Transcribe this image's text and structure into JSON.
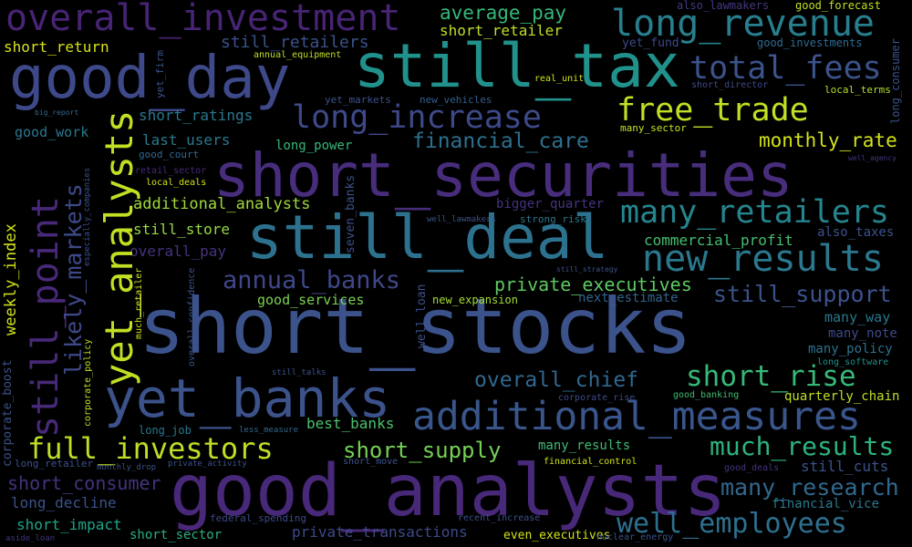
{
  "words": [
    {
      "text": "short_stocks",
      "color": "#3b528b"
    },
    {
      "text": "good_analysts",
      "color": "#482878"
    },
    {
      "text": "short_securities",
      "color": "#472d7b"
    },
    {
      "text": "still_tax",
      "color": "#21918c"
    },
    {
      "text": "still_deal",
      "color": "#2c728e"
    },
    {
      "text": "good_day",
      "color": "#3e4989"
    },
    {
      "text": "yet_banks",
      "color": "#3b528b"
    },
    {
      "text": "additional_measures",
      "color": "#39568c"
    },
    {
      "text": "overall_investment",
      "color": "#482475"
    },
    {
      "text": "long_revenue",
      "color": "#277f8e"
    },
    {
      "text": "new_results",
      "color": "#2a788e"
    },
    {
      "text": "many_retailers",
      "color": "#25858e"
    },
    {
      "text": "free_trade",
      "color": "#c2df23"
    },
    {
      "text": "total_fees",
      "color": "#3b528b"
    },
    {
      "text": "long_increase",
      "color": "#3e4989"
    },
    {
      "text": "full_investors",
      "color": "#bddf26"
    },
    {
      "text": "well_employees",
      "color": "#2d708e"
    },
    {
      "text": "short_rise",
      "color": "#37b878"
    },
    {
      "text": "much_results",
      "color": "#2db27d"
    },
    {
      "text": "annual_banks",
      "color": "#3f4788"
    },
    {
      "text": "still_support",
      "color": "#3b528b"
    },
    {
      "text": "many_research",
      "color": "#31688e"
    },
    {
      "text": "financial_care",
      "color": "#2d708e"
    },
    {
      "text": "monthly_rate",
      "color": "#d2e21b"
    },
    {
      "text": "short_supply",
      "color": "#73d056"
    },
    {
      "text": "overall_chief",
      "color": "#31688e"
    },
    {
      "text": "private_executives",
      "color": "#5ec962"
    },
    {
      "text": "best_banks",
      "color": "#4ac16d"
    },
    {
      "text": "average_pay",
      "color": "#35b779"
    },
    {
      "text": "still_retailers",
      "color": "#3b528b"
    },
    {
      "text": "short_retailer",
      "color": "#bddf26"
    },
    {
      "text": "additional_analysts",
      "color": "#a0da39"
    },
    {
      "text": "commercial_profit",
      "color": "#44bf70"
    },
    {
      "text": "short_ratings",
      "color": "#2a788e"
    },
    {
      "text": "last_users",
      "color": "#2a788e"
    },
    {
      "text": "good_work",
      "color": "#2a788e"
    },
    {
      "text": "long_power",
      "color": "#35b779"
    },
    {
      "text": "still_store",
      "color": "#95d840"
    },
    {
      "text": "overall_pay",
      "color": "#46327e"
    },
    {
      "text": "good_services",
      "color": "#7ad151"
    },
    {
      "text": "short_return",
      "color": "#d8e219"
    },
    {
      "text": "short_consumer",
      "color": "#46327e"
    },
    {
      "text": "long_decline",
      "color": "#3b528b"
    },
    {
      "text": "short_impact",
      "color": "#20a486"
    },
    {
      "text": "short_sector",
      "color": "#29af7f"
    },
    {
      "text": "private_transactions",
      "color": "#3e4989"
    },
    {
      "text": "still_cuts",
      "color": "#3b528b"
    },
    {
      "text": "quarterly_chain",
      "color": "#c0df25"
    },
    {
      "text": "many_way",
      "color": "#2a788e"
    },
    {
      "text": "many_note",
      "color": "#3e4989"
    },
    {
      "text": "many_policy",
      "color": "#2c728e"
    },
    {
      "text": "next_estimate",
      "color": "#33638d"
    },
    {
      "text": "many_results",
      "color": "#3fbc73"
    },
    {
      "text": "bigger_quarter",
      "color": "#46337f"
    },
    {
      "text": "also_taxes",
      "color": "#3b528b"
    },
    {
      "text": "financial_vice",
      "color": "#2a788e"
    },
    {
      "text": "good_forecast",
      "color": "#c2df23"
    },
    {
      "text": "good_investments",
      "color": "#2f6b8e"
    },
    {
      "text": "also_lawmakers",
      "color": "#453781"
    },
    {
      "text": "yet_fund",
      "color": "#3e4a89"
    },
    {
      "text": "yet_markets",
      "color": "#3b528b"
    },
    {
      "text": "new_vehicles",
      "color": "#355f8d"
    },
    {
      "text": "many_sector",
      "color": "#c8e020"
    },
    {
      "text": "short_director",
      "color": "#3e4a89"
    },
    {
      "text": "local_terms",
      "color": "#b5de2b"
    },
    {
      "text": "good_court",
      "color": "#31688e"
    },
    {
      "text": "retail_sector",
      "color": "#472d7b"
    },
    {
      "text": "local_deals",
      "color": "#d2e21b"
    },
    {
      "text": "annual_equipment",
      "color": "#bddf26"
    },
    {
      "text": "real_unit",
      "color": "#d2e21b"
    },
    {
      "text": "big_report",
      "color": "#31688e"
    },
    {
      "text": "strong_risk",
      "color": "#2a788e"
    },
    {
      "text": "well_lawmakers",
      "color": "#3b528b"
    },
    {
      "text": "new_expansion",
      "color": "#a5db36"
    },
    {
      "text": "still_strategy",
      "color": "#3b528b"
    },
    {
      "text": "well_agency",
      "color": "#46337f"
    },
    {
      "text": "long_software",
      "color": "#21918c"
    },
    {
      "text": "good_banking",
      "color": "#3fbc73"
    },
    {
      "text": "corporate_rise",
      "color": "#3e4a89"
    },
    {
      "text": "less_measure",
      "color": "#31688e"
    },
    {
      "text": "long_job",
      "color": "#2a788e"
    },
    {
      "text": "still_talks",
      "color": "#3b528b"
    },
    {
      "text": "short_move",
      "color": "#3b528b"
    },
    {
      "text": "financial_control",
      "color": "#d2e21b"
    },
    {
      "text": "good_deals",
      "color": "#46337f"
    },
    {
      "text": "private_activity",
      "color": "#3b528b"
    },
    {
      "text": "monthly_drop",
      "color": "#3b528b"
    },
    {
      "text": "long_retailer",
      "color": "#3b528b"
    },
    {
      "text": "federal_spending",
      "color": "#3e4a89"
    },
    {
      "text": "recent_increase",
      "color": "#3b528b"
    },
    {
      "text": "even_executives",
      "color": "#d2e21b"
    },
    {
      "text": "nuclear_energy",
      "color": "#3b528b"
    },
    {
      "text": "aside_loan",
      "color": "#46337f"
    },
    {
      "text": "still_point",
      "color": "#482878"
    },
    {
      "text": "yet_analysts",
      "color": "#c2df23"
    },
    {
      "text": "likely_markets",
      "color": "#3e4989"
    },
    {
      "text": "weekly_index",
      "color": "#d2e21b"
    },
    {
      "text": "corporate_boost",
      "color": "#3b528b"
    },
    {
      "text": "corporate_policy",
      "color": "#bddf26"
    },
    {
      "text": "especially_companies",
      "color": "#3b528b"
    },
    {
      "text": "yet_firm",
      "color": "#3b528b"
    },
    {
      "text": "much_retailer",
      "color": "#d2e21b"
    },
    {
      "text": "overall_confidence",
      "color": "#3b528b"
    },
    {
      "text": "seven_banks",
      "color": "#3b528b"
    },
    {
      "text": "well_loan",
      "color": "#3b528b"
    },
    {
      "text": "long_consumer",
      "color": "#3b528b"
    }
  ]
}
